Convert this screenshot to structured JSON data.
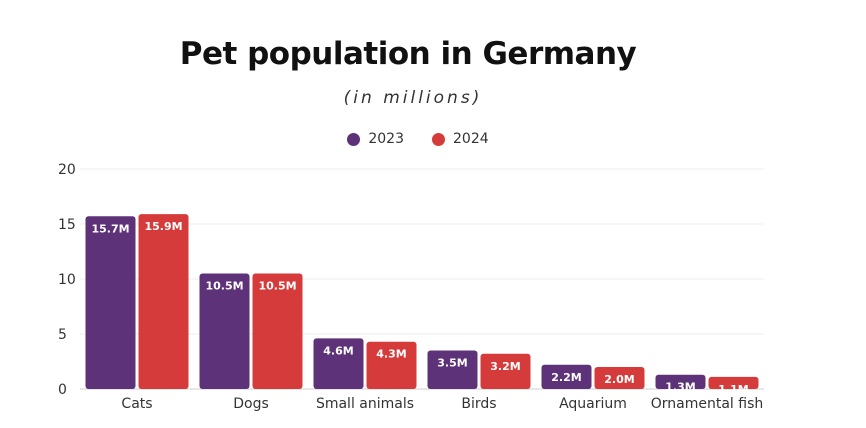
{
  "chart_data": {
    "type": "bar",
    "title": "Pet population in Germany",
    "subtitle": "(in millions)",
    "xlabel": "",
    "ylabel": "",
    "ylim": [
      0,
      20
    ],
    "yticks": [
      0,
      5,
      10,
      15,
      20
    ],
    "grid": true,
    "legend_position": "top-center",
    "categories": [
      "Cats",
      "Dogs",
      "Small animals",
      "Birds",
      "Aquarium",
      "Ornamental fish"
    ],
    "series": [
      {
        "name": "2023",
        "color": "#5e3278",
        "values": [
          15.7,
          10.5,
          4.6,
          3.5,
          2.2,
          1.3
        ],
        "labels": [
          "15.7M",
          "10.5M",
          "4.6M",
          "3.5M",
          "2.2M",
          "1.3M"
        ]
      },
      {
        "name": "2024",
        "color": "#d63b3b",
        "values": [
          15.9,
          10.5,
          4.3,
          3.2,
          2.0,
          1.1
        ],
        "labels": [
          "15.9M",
          "10.5M",
          "4.3M",
          "3.2M",
          "2.0M",
          "1.1M"
        ]
      }
    ]
  }
}
